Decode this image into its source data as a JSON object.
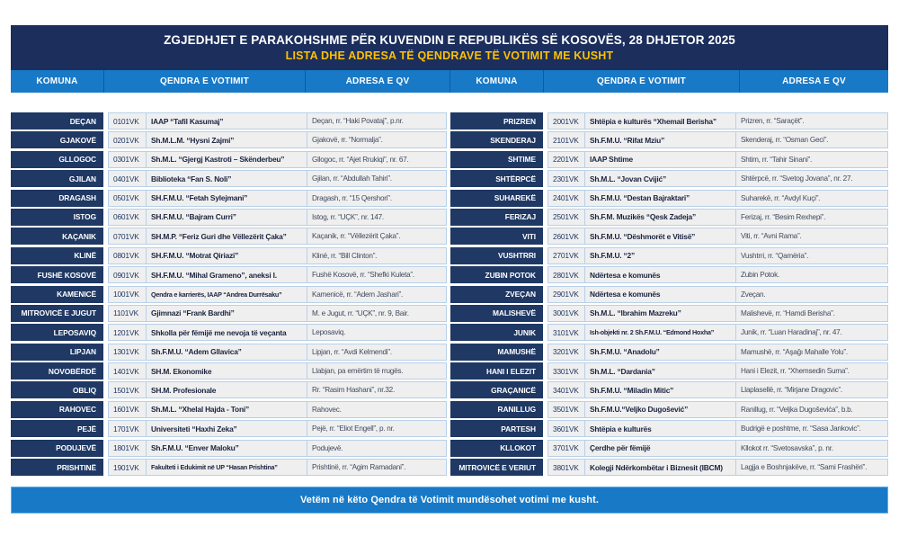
{
  "title": "ZGJEDHJET E PARAKOHSHME PËR KUVENDIN E REPUBLIKËS SË KOSOVËS, 28 DHJETOR 2025",
  "subtitle": "LISTA DHE ADRESA TË QENDRAVE TË VOTIMIT ME KUSHT",
  "footer": "Vetëm në këto Qendra të Votimit mundësohet votimi me kusht.",
  "header_columns": [
    "KOMUNA",
    "QENDRA E VOTIMIT",
    "ADRESA E QV",
    "KOMUNA",
    "QENDRA E VOTIMIT",
    "ADRESA E QV"
  ],
  "colors": {
    "title_band_navy": "#1b2e5c",
    "komuna_cell_navy": "#1f3864",
    "header_footer_blue": "#1879c7",
    "subtitle_yellow": "#ffc000",
    "row_bg": "#efefef",
    "row_border": "#b8d0e8"
  },
  "tables": {
    "left": [
      {
        "komuna": "DEÇAN",
        "code": "0101VK",
        "center": "IAAP “Tafil Kasumaj”",
        "address": "Deçan, rr. “Haki Povataj”, p.nr."
      },
      {
        "komuna": "GJAKOVË",
        "code": "0201VK",
        "center": "Sh.M.L.M. “Hysni Zajmi”",
        "address": "Gjakovë, rr. “Normalja”."
      },
      {
        "komuna": "GLLOGOC",
        "code": "0301VK",
        "center": "Sh.M.L. “Gjergj Kastroti – Skënderbeu”",
        "address": "Gllogoc, rr. “Ajet Rrukiqi”, nr. 67."
      },
      {
        "komuna": "GJILAN",
        "code": "0401VK",
        "center": "Biblioteka “Fan S. Noli”",
        "address": "Gjilan, rr. “Abdullah Tahiri”."
      },
      {
        "komuna": "DRAGASH",
        "code": "0501VK",
        "center": "SH.F.M.U. “Fetah Sylejmani”",
        "address": "Dragash, rr. “15 Qershori”."
      },
      {
        "komuna": "ISTOG",
        "code": "0601VK",
        "center": "SH.F.M.U. “Bajram Curri”",
        "address": "Istog, rr. “UÇK”, nr. 147."
      },
      {
        "komuna": "KAÇANIK",
        "code": "0701VK",
        "center": "SH.M.P. “Feriz Guri dhe Vëllezërit Çaka”",
        "address": "Kaçanik, rr. “Vëllezërit Çaka”."
      },
      {
        "komuna": "KLINË",
        "code": "0801VK",
        "center": "SH.F.M.U. “Motrat Qiriazi”",
        "address": "Klinë, rr. “Bill Clinton”."
      },
      {
        "komuna": "FUSHË KOSOVË",
        "code": "0901VK",
        "center": "SH.F.M.U. “Mihal Grameno”, aneksi I.",
        "address": "Fushë Kosovë, rr. “Shefki Kuleta”."
      },
      {
        "komuna": "KAMENICË",
        "code": "1001VK",
        "center": "Qendra e karrierës, IAAP “Andrea Durrësaku”",
        "address": "Kamenicë, rr. “Adem Jashari”."
      },
      {
        "komuna": "MITROVICË E JUGUT",
        "code": "1101VK",
        "center": "Gjimnazi “Frank Bardhi”",
        "address": "M. e Jugut, rr. “UÇK”, nr. 9, Bair."
      },
      {
        "komuna": "LEPOSAVIQ",
        "code": "1201VK",
        "center": "Shkolla për fëmijë me nevoja të veçanta",
        "address": "Leposaviq."
      },
      {
        "komuna": "LIPJAN",
        "code": "1301VK",
        "center": "Sh.F.M.U. “Adem Gllavica”",
        "address": "Lipjan, rr. “Avdi Kelmendi”."
      },
      {
        "komuna": "NOVOBËRDË",
        "code": "1401VK",
        "center": "SH.M. Ekonomike",
        "address": "Llabjan, pa emërtim të rrugës."
      },
      {
        "komuna": "OBLIQ",
        "code": "1501VK",
        "center": "SH.M. Profesionale",
        "address": "Rr. “Rasim Hashani”, nr.32."
      },
      {
        "komuna": "RAHOVEC",
        "code": "1601VK",
        "center": "Sh.M.L. “Xhelal Hajda - Toni”",
        "address": "Rahovec."
      },
      {
        "komuna": "PEJË",
        "code": "1701VK",
        "center": "Universiteti “Haxhi Zeka”",
        "address": "Pejë, rr. “Eliot Engell”, p. nr."
      },
      {
        "komuna": "PODUJEVË",
        "code": "1801VK",
        "center": "Sh.F.M.U. “Enver Maloku”",
        "address": "Podujevë."
      },
      {
        "komuna": "PRISHTINË",
        "code": "1901VK",
        "center": "Fakulteti i Edukimit në UP “Hasan Prishtina”",
        "address": "Prishtinë, rr. “Agim Ramadani”."
      }
    ],
    "right": [
      {
        "komuna": "PRIZREN",
        "code": "2001VK",
        "center": "Shtëpia e kulturës “Xhemail Berisha”",
        "address": "Prizren, rr. “Saraçët”."
      },
      {
        "komuna": "SKENDERAJ",
        "code": "2101VK",
        "center": "Sh.F.M.U. “Rifat Mziu”",
        "address": "Skenderaj, rr. “Osman Geci”."
      },
      {
        "komuna": "SHTIME",
        "code": "2201VK",
        "center": "IAAP Shtime",
        "address": "Shtim, rr. “Tahir Sinani”."
      },
      {
        "komuna": "SHTËRPCË",
        "code": "2301VK",
        "center": "Sh.M.L. “Jovan Cvijić”",
        "address": "Shtërpcë, rr. “Svetog Jovana”, nr. 27."
      },
      {
        "komuna": "SUHAREKË",
        "code": "2401VK",
        "center": "Sh.F.M.U. “Destan Bajraktari”",
        "address": "Suharekë, rr. “Avdyl Kuçi”."
      },
      {
        "komuna": "FERIZAJ",
        "code": "2501VK",
        "center": "Sh.F.M. Muzikës “Qesk Zadeja”",
        "address": "Ferizaj, rr. “Besim Rexhepi”."
      },
      {
        "komuna": "VITI",
        "code": "2601VK",
        "center": "Sh.F.M.U. “Dëshmorët e Vitisë”",
        "address": "Viti, rr. “Avni Rama”."
      },
      {
        "komuna": "VUSHTRRI",
        "code": "2701VK",
        "center": "Sh.F.M.U. “2”",
        "address": "Vushtrri, rr. “Qamëria”."
      },
      {
        "komuna": "ZUBIN POTOK",
        "code": "2801VK",
        "center": "Ndërtesa e komunës",
        "address": "Zubin Potok."
      },
      {
        "komuna": "ZVEÇAN",
        "code": "2901VK",
        "center": "Ndërtesa e komunës",
        "address": "Zveçan."
      },
      {
        "komuna": "MALISHEVË",
        "code": "3001VK",
        "center": "Sh.M.L. “Ibrahim Mazreku”",
        "address": "Malishevë, rr. “Hamdi Berisha”."
      },
      {
        "komuna": "JUNIK",
        "code": "3101VK",
        "center": "Ish-objekti nr. 2 Sh.F.M.U. “Edmond Hoxha”",
        "address": "Junik, rr. “Luan Haradinaj”, nr. 47."
      },
      {
        "komuna": "MAMUSHË",
        "code": "3201VK",
        "center": "Sh.F.M.U. “Anadolu”",
        "address": "Mamushë, rr. “Aşağı Mahalle Yolu”."
      },
      {
        "komuna": "HANI I ELEZIT",
        "code": "3301VK",
        "center": "Sh.M.L. “Dardania”",
        "address": "Hani i Elezit, rr. “Xhemsedin Suma”."
      },
      {
        "komuna": "GRAÇANICË",
        "code": "3401VK",
        "center": "Sh.F.M.U. “Miladin Mitic”",
        "address": "Llaplasellë, rr. “Mirjane Dragovic”."
      },
      {
        "komuna": "RANILLUG",
        "code": "3501VK",
        "center": "Sh.F.M.U.“Veljko Dugošević”",
        "address": "Ranillug, rr. “Veljka Dugoševića”, b.b."
      },
      {
        "komuna": "PARTESH",
        "code": "3601VK",
        "center": "Shtëpia e kulturës",
        "address": "Budrigë e poshtme, rr. “Sasa Jankovic”."
      },
      {
        "komuna": "KLLOKOT",
        "code": "3701VK",
        "center": "Çerdhe për fëmijë",
        "address": "Kllokot rr. “Svetosavska”, p. nr."
      },
      {
        "komuna": "MITROVICË E VERIUT",
        "code": "3801VK",
        "center": "Kolegji Ndërkombëtar i Biznesit (IBCM)",
        "address": "Lagjja e Boshnjakëve, rr. “Sami Frashëri”."
      }
    ]
  }
}
